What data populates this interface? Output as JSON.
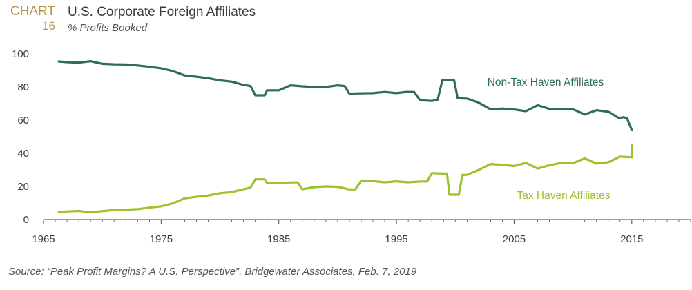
{
  "header": {
    "chart_word": "CHART",
    "chart_number": "16",
    "title": "U.S. Corporate Foreign Affiliates",
    "subtitle": "% Profits Booked"
  },
  "source": "Source: “Peak Profit Margins? A U.S. Perspective”, Bridgewater Associates, Feb. 7, 2019",
  "colors": {
    "non_tax_haven": "#2f6b5e",
    "tax_haven": "#9cc22c",
    "axis": "#444444",
    "text": "#3b3b3b"
  },
  "chart_data": {
    "type": "line",
    "title": "U.S. Corporate Foreign Affiliates",
    "subtitle": "% Profits Booked",
    "xlabel": "",
    "ylabel": "",
    "xlim": [
      1965,
      2020
    ],
    "ylim": [
      0,
      100
    ],
    "x_ticks": [
      "1965",
      "1975",
      "1985",
      "1995",
      "2005",
      "2015"
    ],
    "y_ticks": [
      "0",
      "20",
      "40",
      "60",
      "80",
      "100"
    ],
    "grid": false,
    "series": [
      {
        "name": "Non-Tax Haven Affiliates",
        "color": "#2f6b5e",
        "points": [
          [
            1966.3,
            95.4
          ],
          [
            1967,
            95
          ],
          [
            1968,
            94.7
          ],
          [
            1969,
            95.6
          ],
          [
            1970,
            94
          ],
          [
            1971,
            93.7
          ],
          [
            1972,
            93.6
          ],
          [
            1973,
            93
          ],
          [
            1974,
            92.2
          ],
          [
            1975,
            91.3
          ],
          [
            1976,
            89.6
          ],
          [
            1977,
            87
          ],
          [
            1978,
            86.2
          ],
          [
            1979,
            85.3
          ],
          [
            1980,
            84
          ],
          [
            1981,
            83.2
          ],
          [
            1982,
            81.3
          ],
          [
            1982.6,
            80.6
          ],
          [
            1983,
            75
          ],
          [
            1983.8,
            75
          ],
          [
            1984,
            78
          ],
          [
            1985,
            78
          ],
          [
            1986,
            81
          ],
          [
            1987,
            80.4
          ],
          [
            1988,
            80
          ],
          [
            1989,
            80
          ],
          [
            1990,
            81
          ],
          [
            1990.6,
            80.6
          ],
          [
            1991,
            76
          ],
          [
            1992,
            76.2
          ],
          [
            1993,
            76.3
          ],
          [
            1994,
            77
          ],
          [
            1995,
            76.3
          ],
          [
            1995.8,
            77
          ],
          [
            1996.5,
            77
          ],
          [
            1997,
            72
          ],
          [
            1998,
            71.6
          ],
          [
            1998.5,
            72.3
          ],
          [
            1998.9,
            84
          ],
          [
            1999.9,
            84
          ],
          [
            2000.2,
            73.2
          ],
          [
            2001,
            73
          ],
          [
            2002,
            70.5
          ],
          [
            2003,
            66.5
          ],
          [
            2004,
            67
          ],
          [
            2005,
            66.4
          ],
          [
            2006,
            65.4
          ],
          [
            2007,
            69
          ],
          [
            2008,
            66.8
          ],
          [
            2009,
            66.8
          ],
          [
            2010,
            66.6
          ],
          [
            2011,
            63.4
          ],
          [
            2012,
            66
          ],
          [
            2013,
            65.1
          ],
          [
            2013.9,
            61.3
          ],
          [
            2014.3,
            61.8
          ],
          [
            2014.6,
            61.1
          ],
          [
            2015,
            54
          ]
        ]
      },
      {
        "name": "Tax Haven Affiliates",
        "color": "#9cc22c",
        "points": [
          [
            1966.3,
            4.6
          ],
          [
            1967,
            4.9
          ],
          [
            1968,
            5.2
          ],
          [
            1969,
            4.4
          ],
          [
            1970,
            5.1
          ],
          [
            1971,
            5.8
          ],
          [
            1972,
            6
          ],
          [
            1973,
            6.3
          ],
          [
            1974,
            7.2
          ],
          [
            1975,
            8
          ],
          [
            1976,
            9.8
          ],
          [
            1977,
            12.8
          ],
          [
            1978,
            13.7
          ],
          [
            1979,
            14.5
          ],
          [
            1980,
            15.9
          ],
          [
            1981,
            16.6
          ],
          [
            1982,
            18.3
          ],
          [
            1982.6,
            19.3
          ],
          [
            1983,
            24.3
          ],
          [
            1983.8,
            24.3
          ],
          [
            1984,
            22
          ],
          [
            1985,
            22
          ],
          [
            1986,
            22.4
          ],
          [
            1986.6,
            22.4
          ],
          [
            1987,
            18.3
          ],
          [
            1988,
            19.6
          ],
          [
            1989,
            20
          ],
          [
            1990,
            19.8
          ],
          [
            1991,
            18.2
          ],
          [
            1991.5,
            18.2
          ],
          [
            1992,
            23.5
          ],
          [
            1993,
            23.2
          ],
          [
            1994,
            22.5
          ],
          [
            1995,
            23.1
          ],
          [
            1996,
            22.5
          ],
          [
            1997,
            23
          ],
          [
            1997.6,
            23
          ],
          [
            1998,
            28
          ],
          [
            1999.3,
            27.7
          ],
          [
            1999.5,
            15
          ],
          [
            2000.3,
            15
          ],
          [
            2000.6,
            26.9
          ],
          [
            2001,
            27
          ],
          [
            2002,
            30
          ],
          [
            2003,
            33.5
          ],
          [
            2004,
            33
          ],
          [
            2005,
            32.3
          ],
          [
            2006,
            34.2
          ],
          [
            2007,
            30.8
          ],
          [
            2008,
            32.8
          ],
          [
            2009,
            34.2
          ],
          [
            2010,
            34
          ],
          [
            2011,
            36.9
          ],
          [
            2012,
            33.8
          ],
          [
            2013,
            34.6
          ],
          [
            2014,
            38
          ],
          [
            2015,
            37.6
          ],
          [
            2015,
            45
          ]
        ]
      }
    ],
    "annotations": [
      {
        "text": "Non-Tax Haven Affiliates",
        "series": 0
      },
      {
        "text": "Tax Haven Affiliates",
        "series": 1
      }
    ]
  }
}
